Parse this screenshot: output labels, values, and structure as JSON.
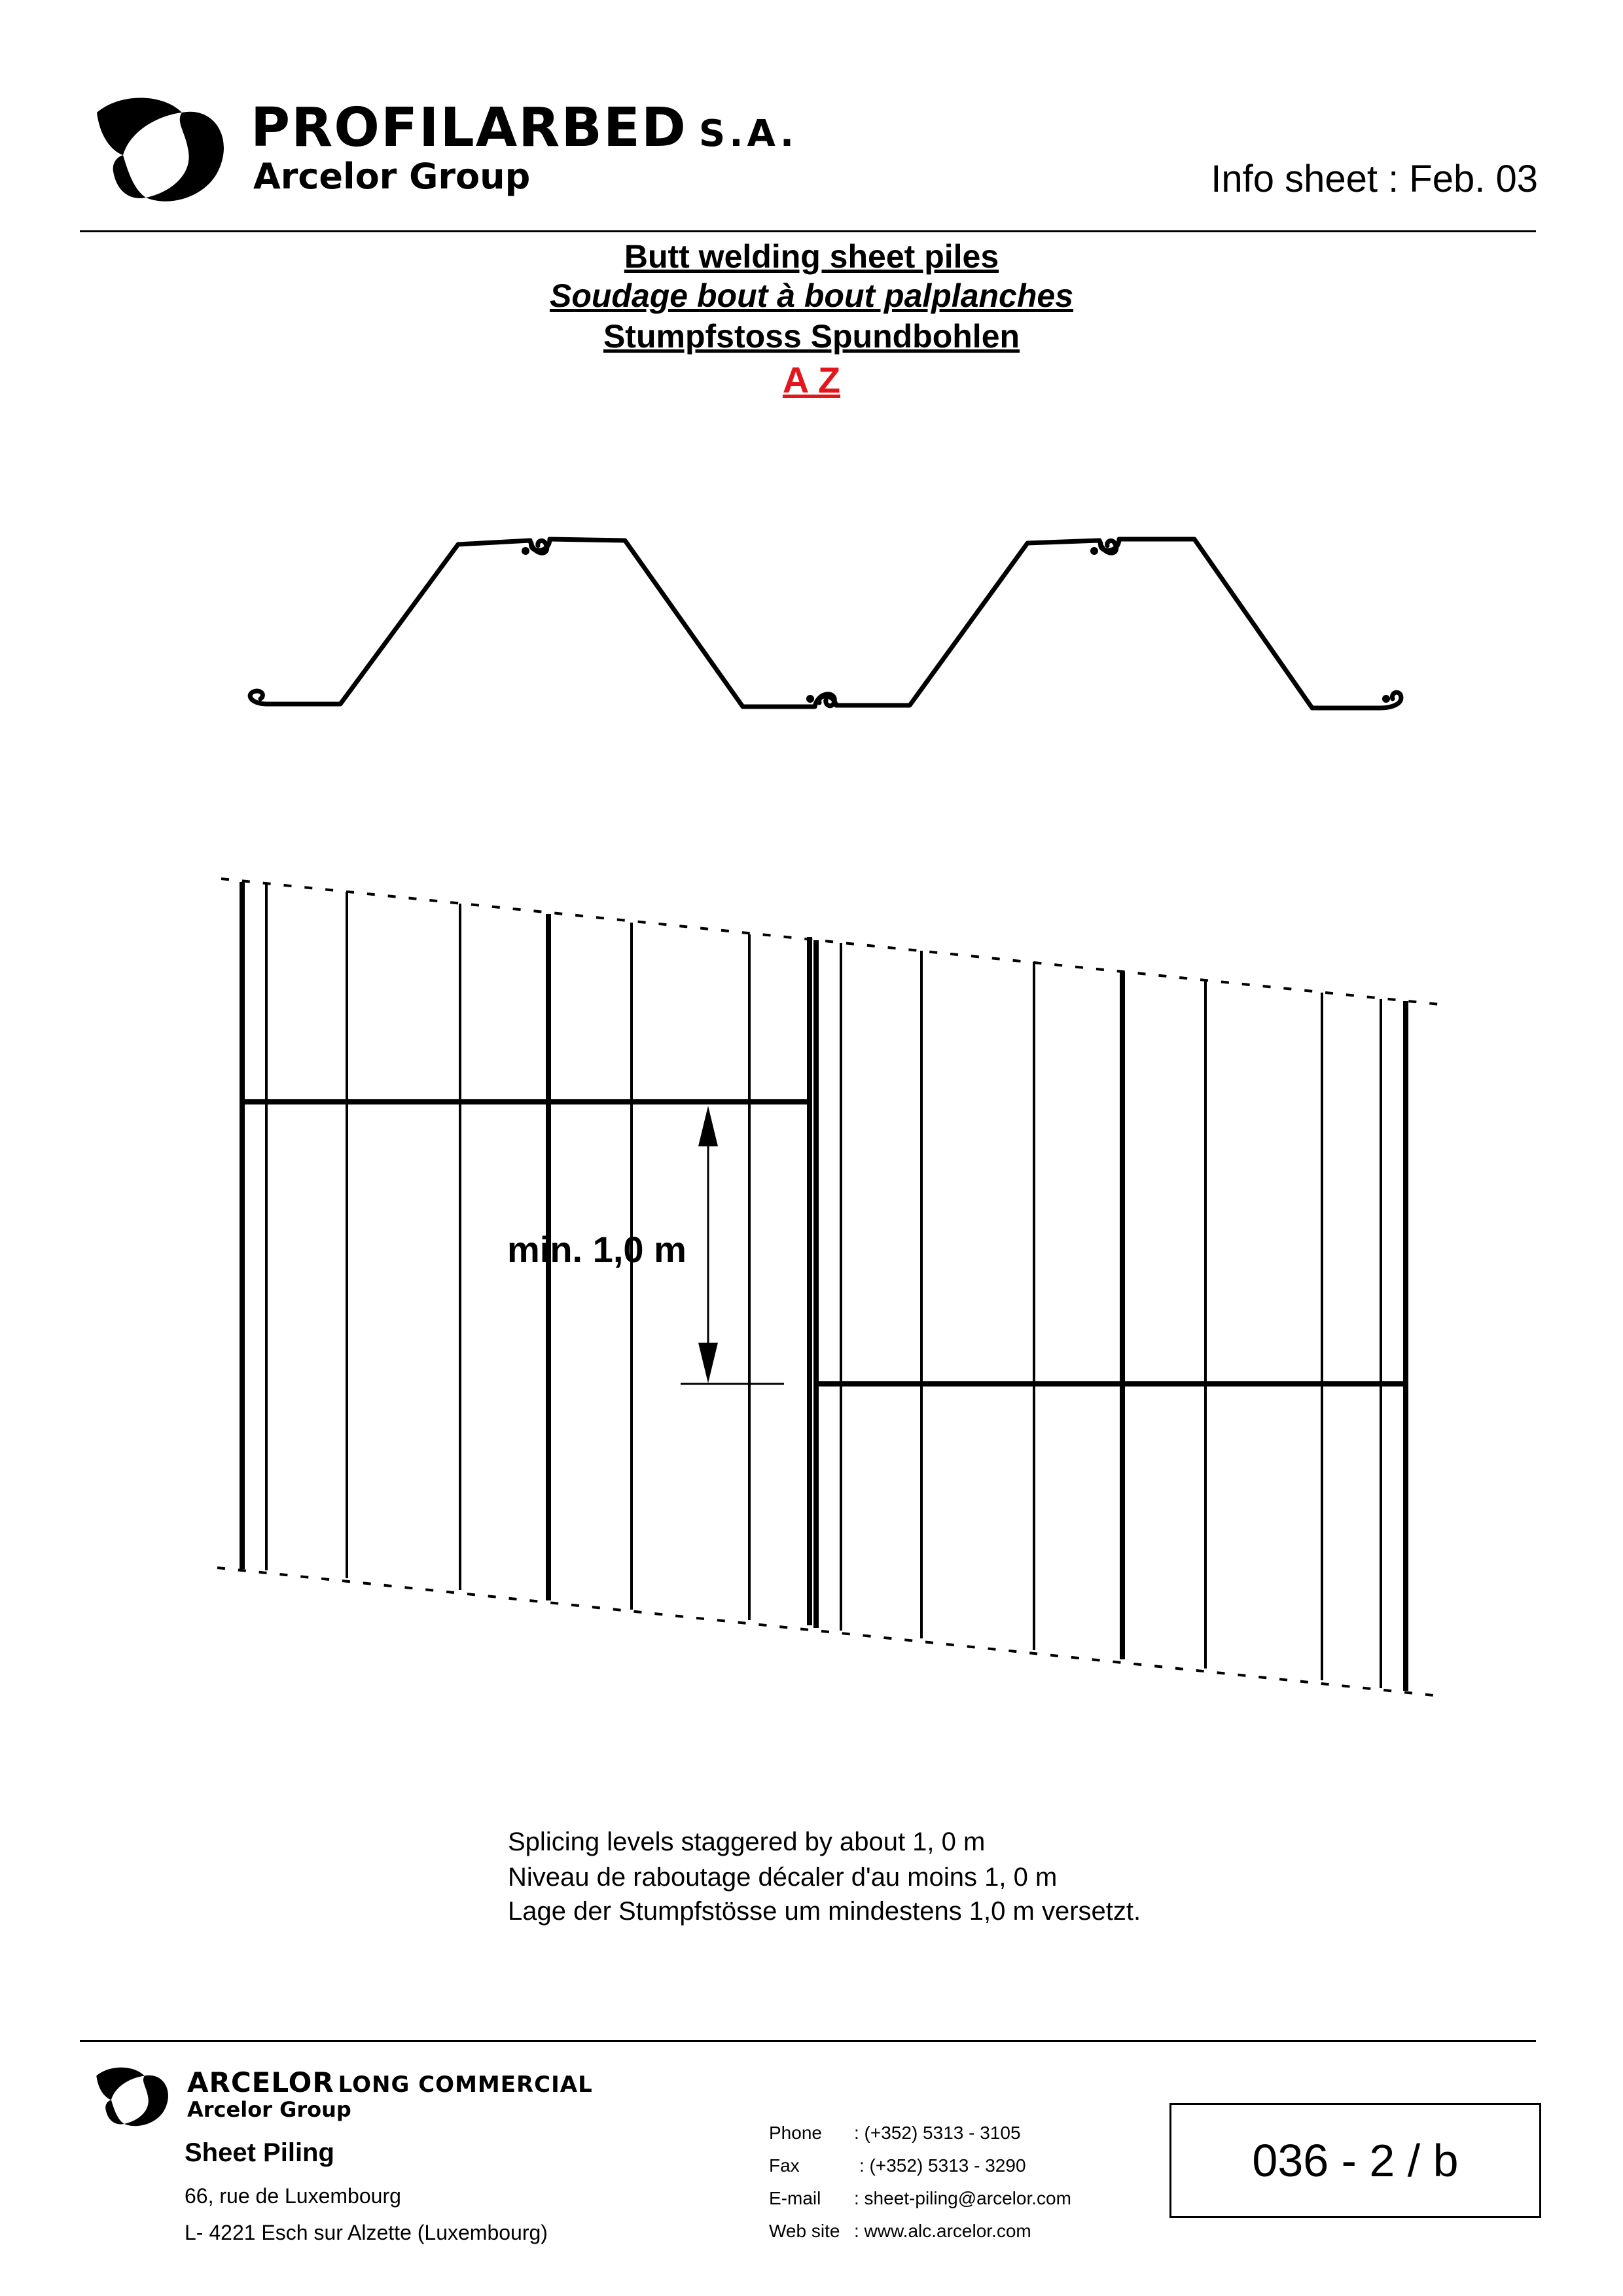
{
  "header": {
    "brand_name": "PROFILARBED",
    "brand_suffix": "S.A.",
    "brand_group": "Arcelor Group",
    "info_sheet": "Info sheet : Feb. 03"
  },
  "titles": {
    "english": "Butt welding sheet piles",
    "french": "Soudage bout à bout palplanches",
    "german": "Stumpfstoss Spundbohlen",
    "profile_type": "A Z",
    "profile_type_color": "#e3171b"
  },
  "drawing": {
    "dimension_label": "min. 1,0 m"
  },
  "notes": {
    "english": "Splicing levels staggered by about 1, 0 m",
    "french": "Niveau de raboutage décaler d'au moins 1, 0 m",
    "german": "Lage der Stumpfstösse um mindestens 1,0 m versetzt."
  },
  "footer": {
    "brand": "ARCELOR",
    "brand_sub": "LONG COMMERCIAL",
    "group": "Arcelor Group",
    "department": "Sheet Piling",
    "address_line1": "66, rue de Luxembourg",
    "address_line2": "L- 4221 Esch sur Alzette (Luxembourg)",
    "contacts": {
      "phone_label": "Phone",
      "phone_value": ": (+352) 5313 - 3105",
      "fax_label": "Fax",
      "fax_value": ": (+352) 5313 - 3290",
      "email_label": "E-mail",
      "email_value": ": sheet-piling@arcelor.com",
      "web_label": "Web site",
      "web_value": ": www.alc.arcelor.com"
    },
    "document_number": "036 - 2 / b"
  }
}
